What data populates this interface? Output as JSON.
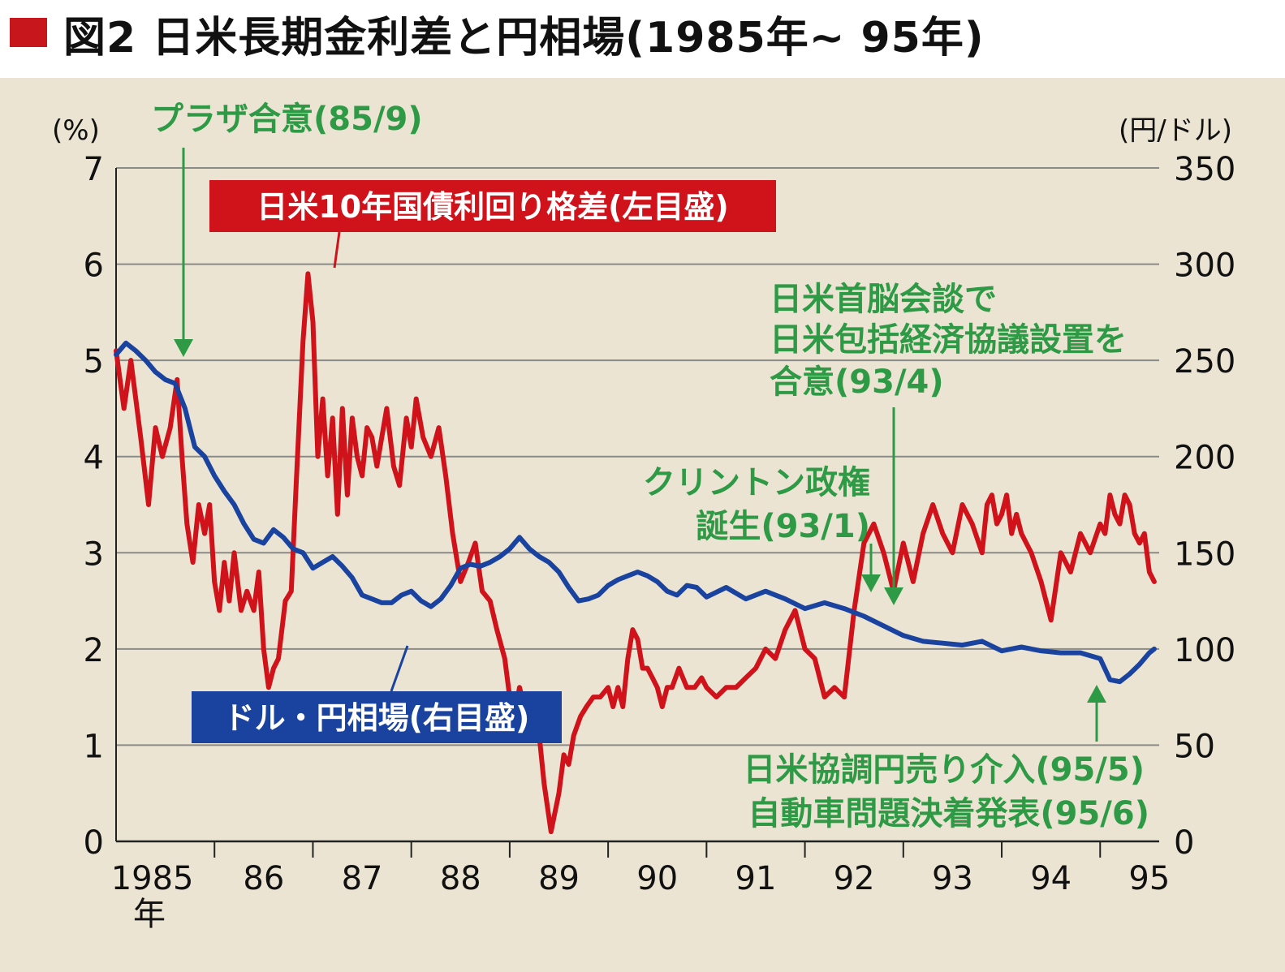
{
  "title": "図2 日米長期金利差と円相場(1985年~ 95年)",
  "colors": {
    "spread": "#d0121b",
    "yen": "#1a43a0",
    "annotation": "#2f9a45",
    "title_mark": "#c8161d",
    "panel": "#ebe4d3",
    "grid": "#8a8a86"
  },
  "chart_data": {
    "type": "line",
    "title": "図2 日米長期金利差と円相場(1985年~ 95年)",
    "left_axis_unit": "(%)",
    "right_axis_unit": "(円/ドル)",
    "left_ticks": [
      "0",
      "1",
      "2",
      "3",
      "4",
      "5",
      "6",
      "7"
    ],
    "right_ticks": [
      "0",
      "50",
      "100",
      "150",
      "200",
      "250",
      "300",
      "350"
    ],
    "x_ticks": [
      "1985",
      "86",
      "87",
      "88",
      "89",
      "90",
      "91",
      "92",
      "93",
      "94",
      "95"
    ],
    "x_tick_suffix": "年",
    "xlim": [
      1985.0,
      1995.6
    ],
    "ylim_left": [
      0,
      7
    ],
    "ylim_right": [
      0,
      350
    ],
    "grid": true,
    "series": [
      {
        "name": "日米10年国債利回り格差(左目盛)",
        "axis": "left",
        "color": "#d0121b",
        "x": [
          1985.0,
          1985.08,
          1985.15,
          1985.25,
          1985.33,
          1985.4,
          1985.47,
          1985.55,
          1985.62,
          1985.67,
          1985.72,
          1985.78,
          1985.84,
          1985.9,
          1985.95,
          1986.0,
          1986.05,
          1986.1,
          1986.15,
          1986.2,
          1986.27,
          1986.33,
          1986.4,
          1986.45,
          1986.5,
          1986.55,
          1986.6,
          1986.65,
          1986.72,
          1986.78,
          1986.83,
          1986.9,
          1986.95,
          1987.0,
          1987.05,
          1987.1,
          1987.15,
          1987.2,
          1987.25,
          1987.3,
          1987.35,
          1987.4,
          1987.45,
          1987.5,
          1987.55,
          1987.6,
          1987.65,
          1987.7,
          1987.75,
          1987.82,
          1987.88,
          1987.95,
          1988.0,
          1988.05,
          1988.12,
          1988.2,
          1988.28,
          1988.35,
          1988.42,
          1988.5,
          1988.58,
          1988.65,
          1988.72,
          1988.8,
          1988.87,
          1988.95,
          1989.0,
          1989.05,
          1989.1,
          1989.15,
          1989.2,
          1989.25,
          1989.3,
          1989.35,
          1989.42,
          1989.5,
          1989.55,
          1989.6,
          1989.65,
          1989.72,
          1989.78,
          1989.85,
          1989.92,
          1990.0,
          1990.05,
          1990.1,
          1990.15,
          1990.2,
          1990.25,
          1990.3,
          1990.35,
          1990.4,
          1990.45,
          1990.5,
          1990.55,
          1990.6,
          1990.65,
          1990.72,
          1990.8,
          1990.88,
          1990.95,
          1991.0,
          1991.1,
          1991.2,
          1991.3,
          1991.4,
          1991.5,
          1991.6,
          1991.7,
          1991.8,
          1991.9,
          1992.0,
          1992.1,
          1992.2,
          1992.3,
          1992.4,
          1992.5,
          1992.6,
          1992.7,
          1992.8,
          1992.9,
          1993.0,
          1993.1,
          1993.2,
          1993.3,
          1993.4,
          1993.5,
          1993.6,
          1993.7,
          1993.8,
          1993.85,
          1993.9,
          1993.95,
          1994.0,
          1994.05,
          1994.1,
          1994.15,
          1994.2,
          1994.3,
          1994.4,
          1994.5,
          1994.6,
          1994.7,
          1994.8,
          1994.9,
          1995.0,
          1995.05,
          1995.1,
          1995.15,
          1995.2,
          1995.25,
          1995.3,
          1995.35,
          1995.4,
          1995.45,
          1995.5,
          1995.55
        ],
        "values": [
          5.1,
          4.5,
          5.0,
          4.2,
          3.5,
          4.3,
          4.0,
          4.3,
          4.8,
          4.0,
          3.3,
          2.9,
          3.5,
          3.2,
          3.5,
          2.7,
          2.4,
          2.9,
          2.5,
          3.0,
          2.4,
          2.6,
          2.4,
          2.8,
          2.0,
          1.6,
          1.8,
          1.9,
          2.5,
          2.6,
          3.7,
          5.2,
          5.9,
          5.4,
          4.0,
          4.6,
          3.8,
          4.4,
          3.4,
          4.5,
          3.6,
          4.4,
          4.0,
          3.8,
          4.3,
          4.2,
          3.9,
          4.2,
          4.5,
          3.9,
          3.7,
          4.4,
          4.1,
          4.6,
          4.2,
          4.0,
          4.3,
          3.8,
          3.2,
          2.7,
          2.9,
          3.1,
          2.6,
          2.5,
          2.2,
          1.9,
          1.5,
          1.3,
          1.6,
          1.4,
          1.5,
          1.2,
          1.1,
          0.6,
          0.1,
          0.5,
          0.9,
          0.8,
          1.1,
          1.3,
          1.4,
          1.5,
          1.5,
          1.6,
          1.4,
          1.6,
          1.4,
          1.9,
          2.2,
          2.1,
          1.8,
          1.8,
          1.7,
          1.6,
          1.4,
          1.6,
          1.6,
          1.8,
          1.6,
          1.6,
          1.7,
          1.6,
          1.5,
          1.6,
          1.6,
          1.7,
          1.8,
          2.0,
          1.9,
          2.2,
          2.4,
          2.0,
          1.9,
          1.5,
          1.6,
          1.5,
          2.4,
          3.1,
          3.3,
          3.0,
          2.6,
          3.1,
          2.7,
          3.2,
          3.5,
          3.2,
          3.0,
          3.5,
          3.3,
          3.0,
          3.5,
          3.6,
          3.3,
          3.4,
          3.6,
          3.2,
          3.4,
          3.2,
          3.0,
          2.7,
          2.3,
          3.0,
          2.8,
          3.2,
          3.0,
          3.3,
          3.2,
          3.6,
          3.4,
          3.3,
          3.6,
          3.5,
          3.2,
          3.1,
          3.2,
          2.8,
          2.7
        ]
      },
      {
        "name": "ドル・円相場(右目盛)",
        "axis": "right",
        "color": "#1a43a0",
        "x": [
          1985.0,
          1985.1,
          1985.2,
          1985.3,
          1985.4,
          1985.5,
          1985.6,
          1985.7,
          1985.75,
          1985.8,
          1985.9,
          1986.0,
          1986.1,
          1986.2,
          1986.3,
          1986.4,
          1986.5,
          1986.6,
          1986.7,
          1986.8,
          1986.9,
          1987.0,
          1987.1,
          1987.2,
          1987.3,
          1987.4,
          1987.5,
          1987.6,
          1987.7,
          1987.8,
          1987.9,
          1988.0,
          1988.1,
          1988.2,
          1988.3,
          1988.4,
          1988.5,
          1988.6,
          1988.7,
          1988.8,
          1988.9,
          1989.0,
          1989.1,
          1989.2,
          1989.3,
          1989.4,
          1989.5,
          1989.6,
          1989.7,
          1989.8,
          1989.9,
          1990.0,
          1990.1,
          1990.2,
          1990.3,
          1990.4,
          1990.5,
          1990.6,
          1990.7,
          1990.8,
          1990.9,
          1991.0,
          1991.2,
          1991.4,
          1991.6,
          1991.8,
          1992.0,
          1992.2,
          1992.4,
          1992.6,
          1992.8,
          1993.0,
          1993.2,
          1993.4,
          1993.6,
          1993.8,
          1994.0,
          1994.2,
          1994.4,
          1994.6,
          1994.8,
          1995.0,
          1995.1,
          1995.2,
          1995.3,
          1995.4,
          1995.5,
          1995.55
        ],
        "values": [
          253,
          259,
          255,
          250,
          244,
          240,
          238,
          225,
          215,
          205,
          200,
          190,
          182,
          175,
          165,
          157,
          155,
          162,
          158,
          152,
          150,
          142,
          145,
          148,
          143,
          137,
          128,
          126,
          124,
          124,
          128,
          130,
          125,
          122,
          126,
          133,
          142,
          144,
          143,
          145,
          148,
          152,
          158,
          152,
          148,
          145,
          140,
          132,
          125,
          126,
          128,
          133,
          136,
          138,
          140,
          138,
          135,
          130,
          128,
          133,
          132,
          127,
          132,
          126,
          130,
          126,
          121,
          124,
          121,
          117,
          112,
          107,
          104,
          103,
          102,
          104,
          99,
          101,
          99,
          98,
          98,
          95,
          84,
          83,
          87,
          92,
          98,
          100
        ]
      }
    ],
    "annotations": [
      {
        "id": "plaza",
        "text": "プラザ合意(85/9)"
      },
      {
        "id": "clinton",
        "text": "クリントン政権",
        "text2": "誕生(93/1)"
      },
      {
        "id": "summit",
        "text": "日米首脳会談で",
        "text2": "日米包括経済協議設置を",
        "text3": "合意(93/4)"
      },
      {
        "id": "intervention",
        "text": "日米協調円売り介入(95/5)",
        "text2": "自動車問題決着発表(95/6)"
      }
    ]
  }
}
